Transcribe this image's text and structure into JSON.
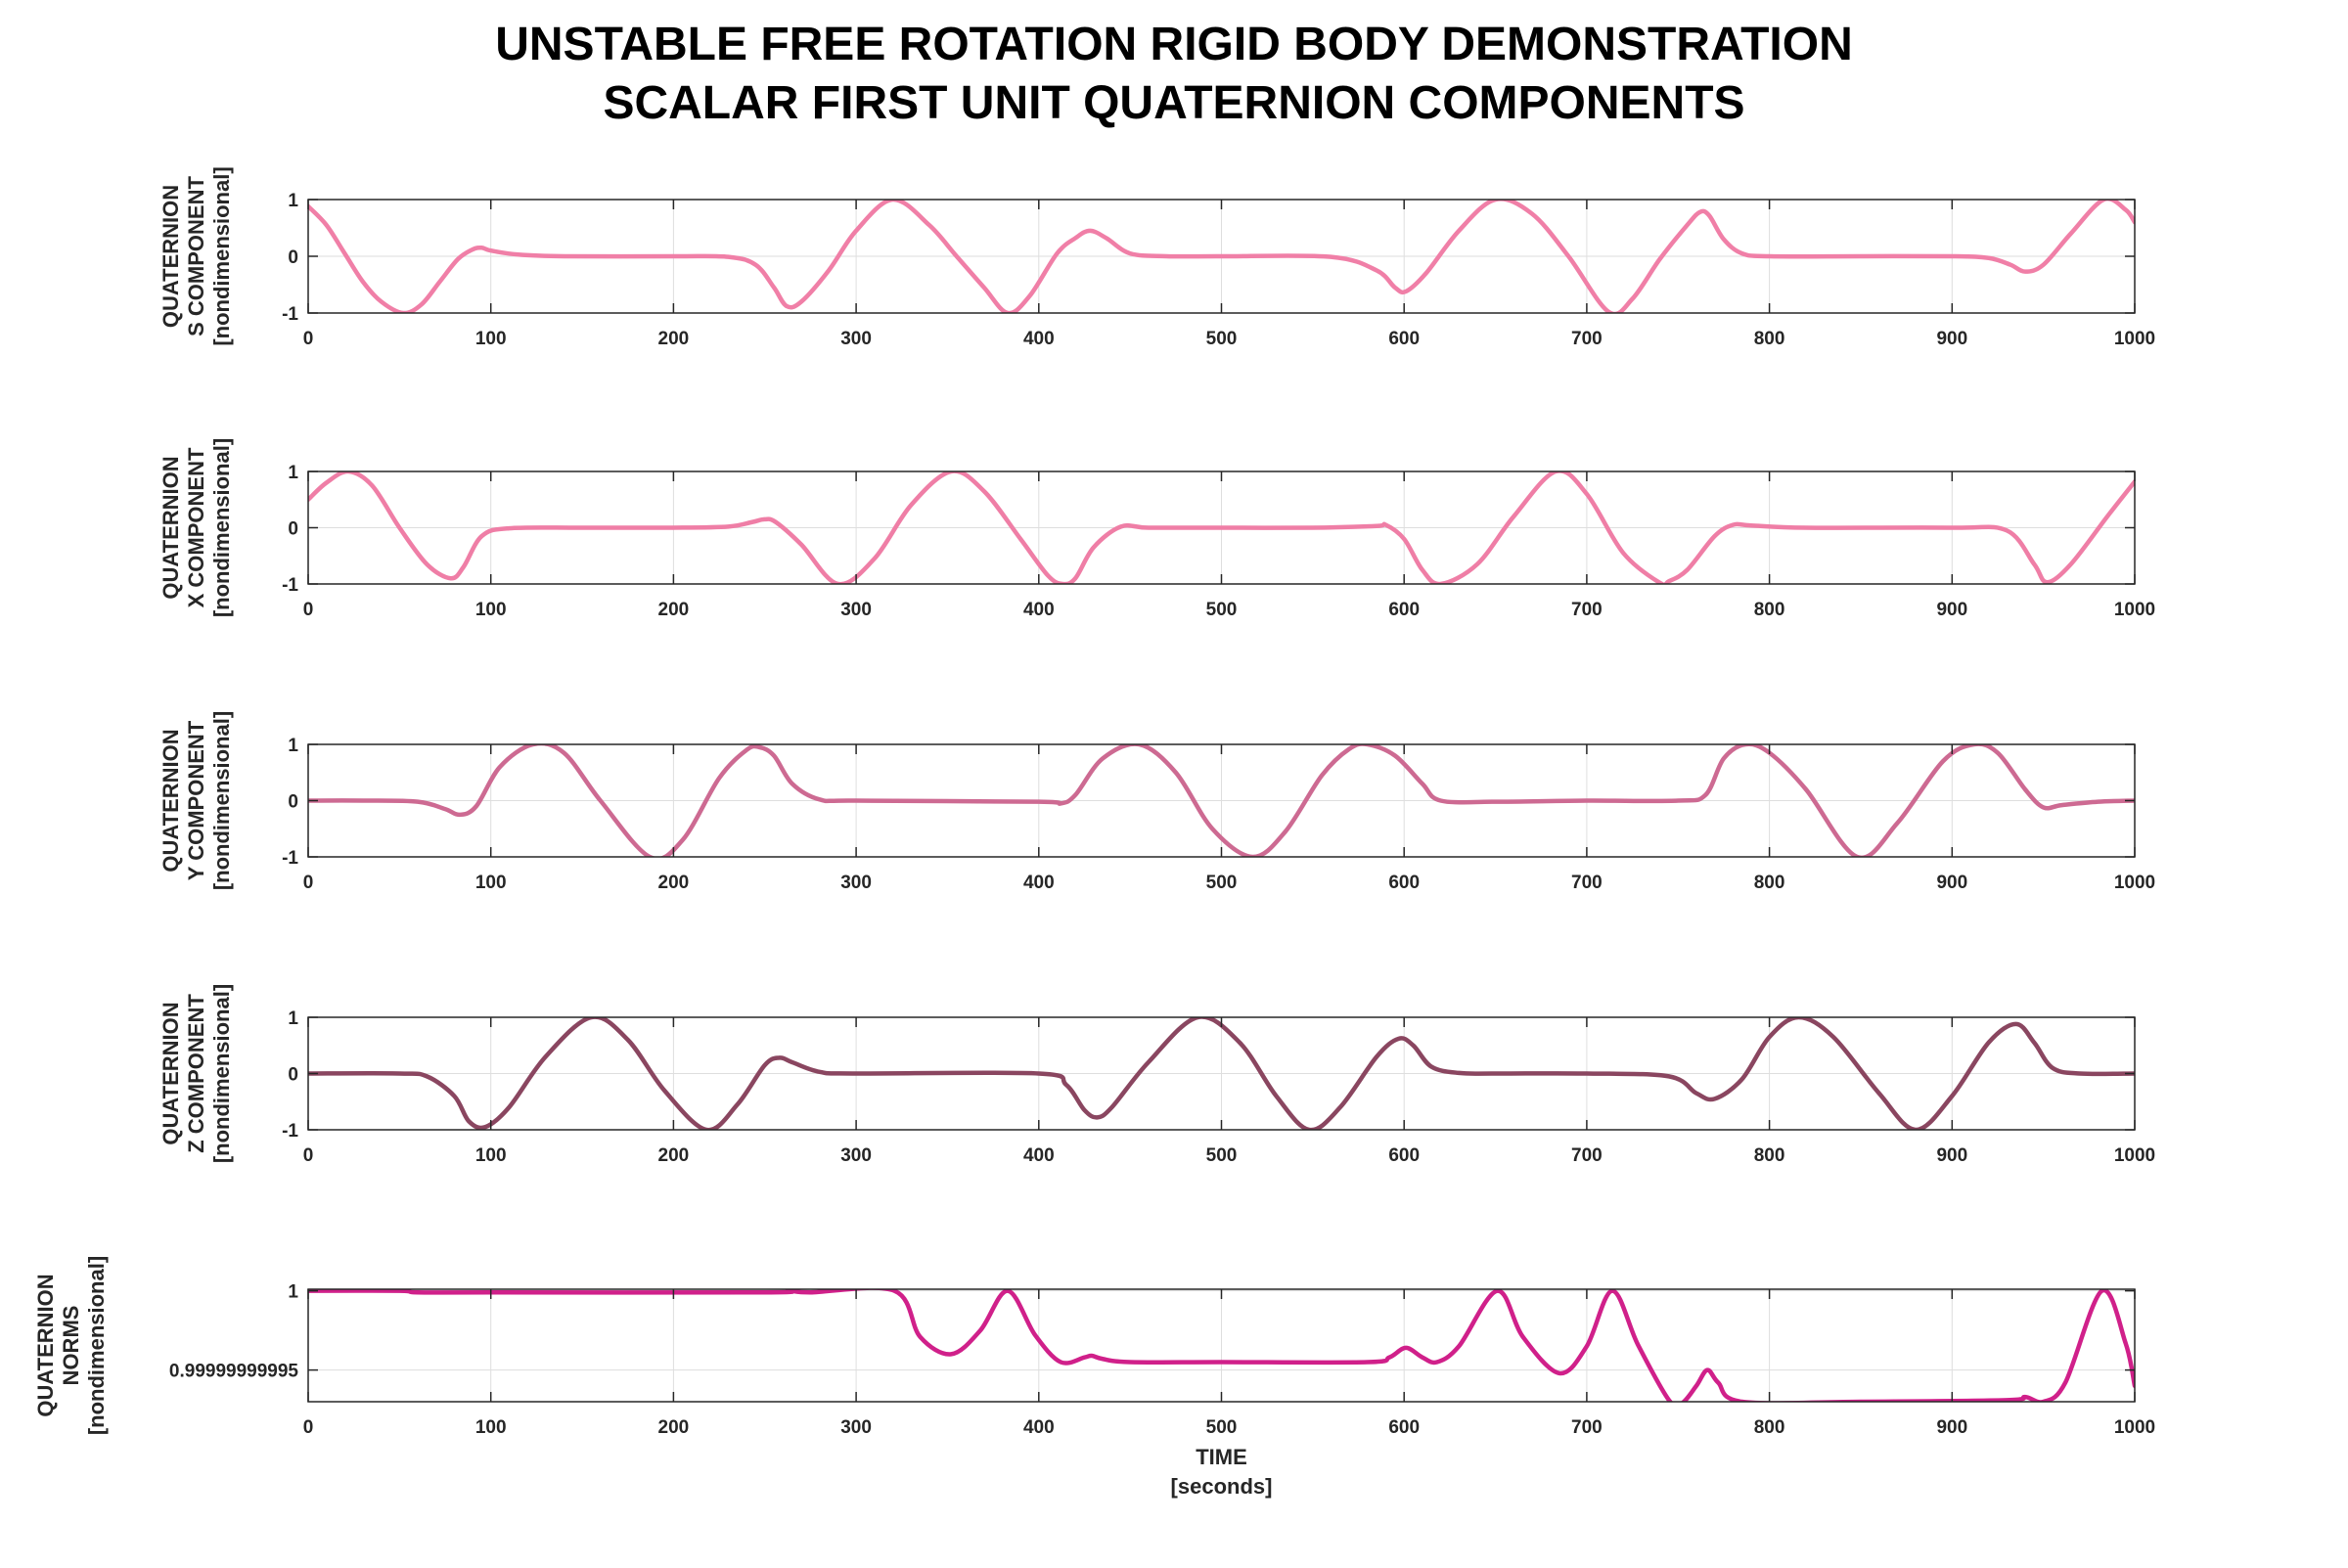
{
  "figure": {
    "title_line1": "UNSTABLE FREE ROTATION RIGID BODY DEMONSTRATION",
    "title_line2": "SCALAR FIRST UNIT QUATERNION COMPONENTS"
  },
  "colors": {
    "s": "#f07fa7",
    "x": "#ef7ea6",
    "y": "#cd6a92",
    "z": "#8a4660",
    "norm": "#d0208a",
    "grid": "#dedede",
    "axis": "#262626"
  },
  "chart_data": [
    {
      "type": "line",
      "ylabel_lines": [
        "QUATERNION",
        "S COMPONENT",
        "[nondimensional]"
      ],
      "xlabel_lines": [],
      "xlim": [
        0,
        1000
      ],
      "ylim": [
        -1,
        1
      ],
      "xticks": [
        0,
        100,
        200,
        300,
        400,
        500,
        600,
        700,
        800,
        900,
        1000
      ],
      "yticks": [
        -1,
        0,
        1
      ],
      "ytick_labels": [
        "-1",
        "0",
        "1"
      ],
      "grid": true,
      "series": [
        {
          "color_key": "s",
          "x": [
            0,
            10,
            20,
            30,
            40,
            52,
            62,
            72,
            82,
            90,
            95,
            100,
            115,
            140,
            200,
            230,
            245,
            255,
            262,
            270,
            285,
            300,
            320,
            340,
            355,
            370,
            383,
            395,
            410,
            420,
            428,
            437,
            450,
            470,
            500,
            560,
            585,
            595,
            601,
            612,
            630,
            650,
            670,
            690,
            712,
            725,
            740,
            755,
            762,
            767,
            775,
            785,
            800,
            850,
            900,
            920,
            932,
            940,
            950,
            965,
            983,
            995,
            1000
          ],
          "y": [
            0.88,
            0.55,
            0.05,
            -0.45,
            -0.8,
            -1.0,
            -0.85,
            -0.45,
            -0.05,
            0.12,
            0.15,
            0.1,
            0.03,
            0.0,
            0.0,
            -0.01,
            -0.15,
            -0.55,
            -0.88,
            -0.8,
            -0.25,
            0.45,
            1.0,
            0.55,
            0.0,
            -0.55,
            -1.0,
            -0.7,
            0.05,
            0.32,
            0.45,
            0.32,
            0.05,
            0.0,
            0.0,
            -0.01,
            -0.25,
            -0.55,
            -0.62,
            -0.3,
            0.45,
            1.0,
            0.75,
            0.0,
            -0.98,
            -0.75,
            -0.05,
            0.55,
            0.78,
            0.72,
            0.3,
            0.05,
            0.0,
            0.0,
            0.0,
            -0.03,
            -0.15,
            -0.27,
            -0.15,
            0.4,
            1.0,
            0.82,
            0.6
          ]
        }
      ]
    },
    {
      "type": "line",
      "ylabel_lines": [
        "QUATERNION",
        "X COMPONENT",
        "[nondimensional]"
      ],
      "xlabel_lines": [],
      "xlim": [
        0,
        1000
      ],
      "ylim": [
        -1,
        1
      ],
      "xticks": [
        0,
        100,
        200,
        300,
        400,
        500,
        600,
        700,
        800,
        900,
        1000
      ],
      "yticks": [
        -1,
        0,
        1
      ],
      "ytick_labels": [
        "-1",
        "0",
        "1"
      ],
      "grid": true,
      "series": [
        {
          "color_key": "x",
          "x": [
            0,
            10,
            22,
            35,
            50,
            65,
            78,
            85,
            95,
            110,
            150,
            200,
            230,
            243,
            250,
            256,
            270,
            290,
            310,
            330,
            352,
            370,
            390,
            405,
            413,
            420,
            430,
            445,
            460,
            500,
            550,
            585,
            590,
            600,
            610,
            620,
            640,
            660,
            683,
            700,
            720,
            740,
            745,
            755,
            770,
            780,
            790,
            820,
            900,
            930,
            945,
            952,
            965,
            985,
            1000
          ],
          "y": [
            0.5,
            0.8,
            1.0,
            0.75,
            0.0,
            -0.65,
            -0.9,
            -0.7,
            -0.15,
            -0.01,
            0.0,
            0.0,
            0.02,
            0.1,
            0.15,
            0.1,
            -0.3,
            -1.0,
            -0.55,
            0.4,
            1.0,
            0.65,
            -0.2,
            -0.85,
            -1.0,
            -0.9,
            -0.35,
            0.02,
            0.0,
            0.0,
            0.0,
            0.03,
            0.05,
            -0.2,
            -0.75,
            -1.0,
            -0.65,
            0.2,
            1.0,
            0.6,
            -0.45,
            -0.98,
            -0.95,
            -0.75,
            -0.15,
            0.05,
            0.04,
            0.0,
            0.0,
            -0.05,
            -0.65,
            -0.97,
            -0.65,
            0.2,
            0.82
          ]
        }
      ]
    },
    {
      "type": "line",
      "ylabel_lines": [
        "QUATERNION",
        "Y COMPONENT",
        "[nondimensional]"
      ],
      "xlabel_lines": [],
      "xlim": [
        0,
        1000
      ],
      "ylim": [
        -1,
        1
      ],
      "xticks": [
        0,
        100,
        200,
        300,
        400,
        500,
        600,
        700,
        800,
        900,
        1000
      ],
      "yticks": [
        -1,
        0,
        1
      ],
      "ytick_labels": [
        "-1",
        "0",
        "1"
      ],
      "grid": true,
      "series": [
        {
          "color_key": "y",
          "x": [
            0,
            30,
            60,
            75,
            83,
            92,
            105,
            123,
            140,
            160,
            187,
            205,
            225,
            240,
            247,
            255,
            265,
            280,
            300,
            400,
            412,
            420,
            435,
            455,
            475,
            495,
            517,
            535,
            555,
            570,
            580,
            595,
            610,
            620,
            650,
            700,
            750,
            765,
            775,
            787,
            800,
            820,
            848,
            870,
            895,
            912,
            925,
            940,
            950,
            960,
            980,
            1000
          ],
          "y": [
            0.0,
            0.0,
            -0.02,
            -0.15,
            -0.25,
            -0.1,
            0.6,
            1.0,
            0.85,
            0.0,
            -1.0,
            -0.7,
            0.4,
            0.9,
            0.95,
            0.8,
            0.3,
            0.02,
            0.0,
            -0.02,
            -0.05,
            0.1,
            0.75,
            1.0,
            0.5,
            -0.5,
            -1.0,
            -0.55,
            0.45,
            0.92,
            1.0,
            0.8,
            0.3,
            0.0,
            -0.02,
            0.0,
            0.0,
            0.1,
            0.75,
            1.0,
            0.85,
            0.2,
            -1.0,
            -0.4,
            0.7,
            1.0,
            0.85,
            0.2,
            -0.12,
            -0.08,
            -0.02,
            0.0
          ]
        }
      ]
    },
    {
      "type": "line",
      "ylabel_lines": [
        "QUATERNION",
        "Z COMPONENT",
        "[nondimensional]"
      ],
      "xlabel_lines": [],
      "xlim": [
        0,
        1000
      ],
      "ylim": [
        -1,
        1
      ],
      "xticks": [
        0,
        100,
        200,
        300,
        400,
        500,
        600,
        700,
        800,
        900,
        1000
      ],
      "yticks": [
        -1,
        0,
        1
      ],
      "ytick_labels": [
        "-1",
        "0",
        "1"
      ],
      "grid": true,
      "series": [
        {
          "color_key": "z",
          "x": [
            0,
            50,
            65,
            80,
            88,
            97,
            110,
            130,
            155,
            175,
            195,
            218,
            235,
            250,
            258,
            265,
            280,
            300,
            400,
            415,
            425,
            432,
            440,
            460,
            487,
            510,
            530,
            548,
            565,
            585,
            597,
            605,
            615,
            630,
            650,
            700,
            745,
            760,
            770,
            785,
            800,
            816,
            835,
            860,
            880,
            900,
            920,
            935,
            945,
            955,
            970,
            1000
          ],
          "y": [
            0.0,
            0.0,
            -0.05,
            -0.4,
            -0.85,
            -0.95,
            -0.6,
            0.3,
            1.0,
            0.6,
            -0.3,
            -1.0,
            -0.55,
            0.15,
            0.28,
            0.2,
            0.03,
            0.0,
            0.0,
            -0.2,
            -0.65,
            -0.78,
            -0.6,
            0.2,
            1.0,
            0.55,
            -0.4,
            -1.0,
            -0.6,
            0.3,
            0.62,
            0.5,
            0.12,
            0.01,
            0.0,
            0.0,
            -0.05,
            -0.35,
            -0.45,
            -0.1,
            0.65,
            1.0,
            0.65,
            -0.35,
            -1.0,
            -0.4,
            0.55,
            0.88,
            0.55,
            0.1,
            0.0,
            0.0
          ]
        }
      ]
    },
    {
      "type": "line",
      "ylabel_lines": [
        "QUATERNION",
        "NORMS",
        "[nondimensional]"
      ],
      "xlabel_lines": [
        "TIME",
        "[seconds]"
      ],
      "xlim": [
        0,
        1000
      ],
      "ylim": [
        0.99999999993,
        1.000000000001
      ],
      "xticks": [
        0,
        100,
        200,
        300,
        400,
        500,
        600,
        700,
        800,
        900,
        1000
      ],
      "yticks": [
        0.99999999995,
        1
      ],
      "ytick_labels": [
        "0.99999999995",
        "1"
      ],
      "grid": true,
      "series": [
        {
          "color_key": "norm",
          "x": [
            0,
            50,
            60,
            100,
            250,
            263,
            275,
            321,
            335,
            352,
            368,
            383,
            398,
            412,
            425,
            429,
            435,
            450,
            500,
            580,
            592,
            601,
            610,
            618,
            630,
            651,
            665,
            685,
            700,
            714,
            728,
            745,
            752,
            760,
            766,
            772,
            785,
            850,
            930,
            940,
            950,
            962,
            982,
            995,
            1000
          ],
          "y": [
            1.0,
            1.0,
            0.999999999999,
            0.999999999999,
            0.999999999999,
            1.0,
            0.999999999999,
            1.0,
            0.999999999971,
            0.99999999996,
            0.999999999975,
            1.0,
            0.999999999972,
            0.999999999955,
            0.999999999958,
            0.999999999959,
            0.999999999957,
            0.999999999955,
            0.999999999955,
            0.999999999955,
            0.999999999958,
            0.999999999964,
            0.999999999958,
            0.999999999955,
            0.999999999965,
            1.0,
            0.999999999971,
            0.999999999948,
            0.999999999965,
            1.0,
            0.999999999966,
            0.999999999931,
            0.999999999929,
            0.99999999994,
            0.99999999995,
            0.999999999942,
            0.99999999993,
            0.99999999993,
            0.999999999931,
            0.999999999933,
            0.99999999993,
            0.999999999942,
            1.0,
            0.999999999967,
            0.99999999994
          ]
        }
      ]
    }
  ]
}
